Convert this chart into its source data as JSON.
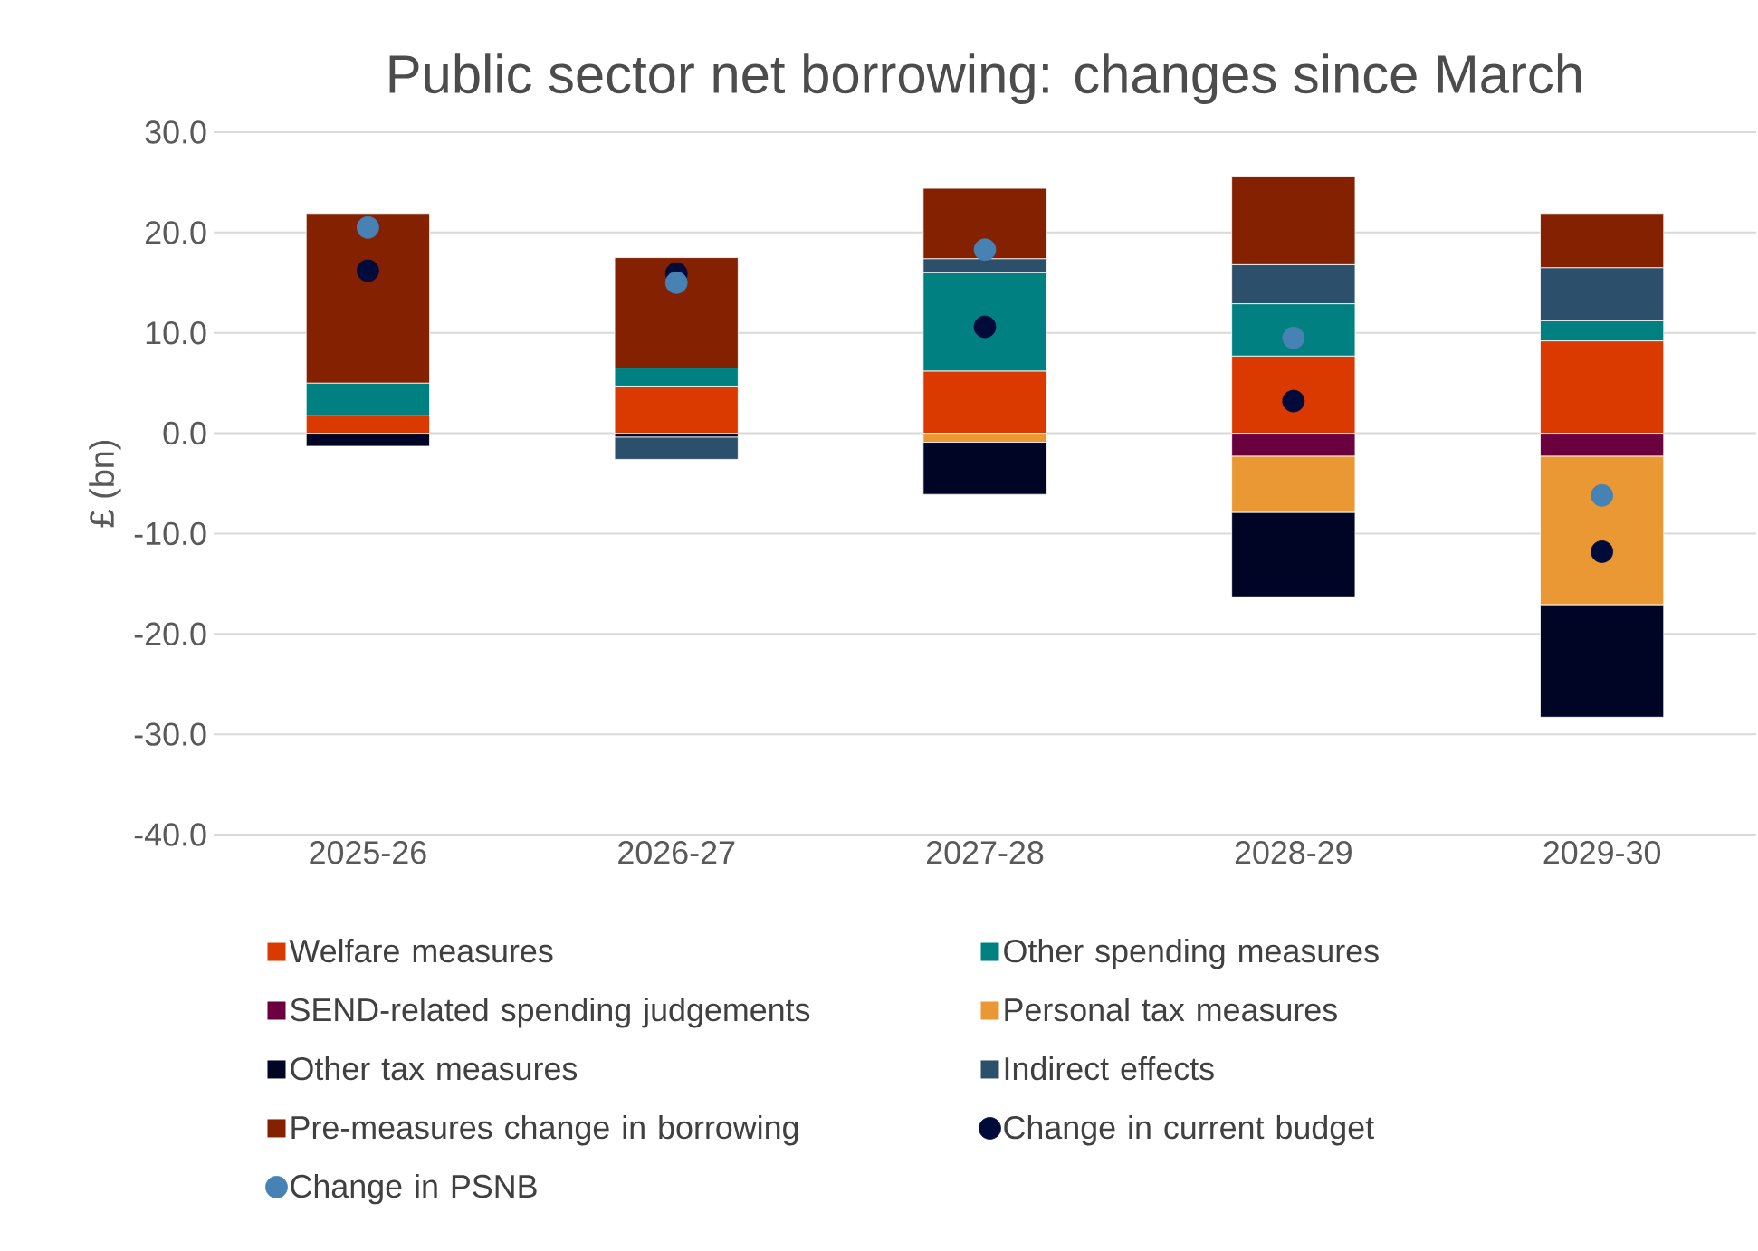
{
  "chart_data": {
    "type": "bar",
    "title": "Public sector net borrowing: changes since March",
    "ylabel": "£ (bn)",
    "stacked": true,
    "grid": "y",
    "legend": "bottom",
    "categories": [
      "2025-26",
      "2026-27",
      "2027-28",
      "2028-29",
      "2029-30"
    ],
    "ylim": [
      -40,
      30
    ],
    "yticks": [
      {
        "value": -40,
        "label": "-40.0"
      },
      {
        "value": -30,
        "label": "-30.0"
      },
      {
        "value": -20,
        "label": "-20.0"
      },
      {
        "value": -10,
        "label": "-10.0"
      },
      {
        "value": 0,
        "label": "0.0"
      },
      {
        "value": 10,
        "label": "10.0"
      },
      {
        "value": 20,
        "label": "20.0"
      },
      {
        "value": 30,
        "label": "30.0"
      }
    ],
    "series": [
      {
        "name": "Welfare measures",
        "color": "#da3a00",
        "values": [
          1.8,
          4.7,
          6.2,
          7.7,
          9.2
        ]
      },
      {
        "name": "Other spending measures",
        "color": "#008080",
        "values": [
          3.2,
          1.8,
          9.8,
          5.2,
          2.0
        ]
      },
      {
        "name": "SEND-related spending judgements",
        "color": "#6b003f",
        "values": [
          0,
          0,
          0,
          -2.3,
          -2.3
        ]
      },
      {
        "name": "Personal tax measures",
        "color": "#ea9834",
        "values": [
          0,
          0,
          -0.9,
          -5.6,
          -14.8
        ]
      },
      {
        "name": "Other tax measures",
        "color": "#000425",
        "values": [
          -1.3,
          -0.4,
          -5.2,
          -8.4,
          -11.2
        ]
      },
      {
        "name": "Indirect effects",
        "color": "#2c4f6b",
        "values": [
          0,
          -2.2,
          1.4,
          3.9,
          5.3
        ]
      },
      {
        "name": "Pre-measures change in borrowing",
        "color": "#832100",
        "values": [
          16.9,
          11.0,
          7.0,
          8.8,
          5.4
        ]
      },
      {
        "name": "Change in current budget",
        "type": "scatter",
        "marker": "circle",
        "color": "#000b3a",
        "x": [
          "2025-26",
          "2026-27",
          "2027-28",
          "2028-29",
          "2029-30"
        ],
        "values": [
          16.2,
          15.9,
          10.6,
          3.2,
          -11.8
        ]
      },
      {
        "name": "Change in PSNB",
        "type": "scatter",
        "marker": "circle",
        "color": "#4682b4",
        "x": [
          "2025-26",
          "2026-27",
          "2027-28",
          "2028-29",
          "2029-30"
        ],
        "values": [
          20.5,
          15.0,
          18.3,
          9.5,
          -6.2
        ]
      }
    ]
  }
}
